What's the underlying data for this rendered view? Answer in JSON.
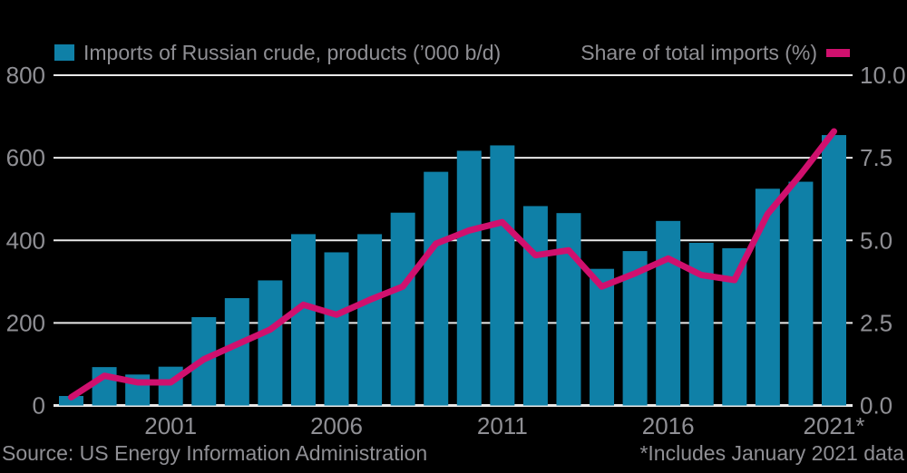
{
  "legend": {
    "bars_label": "Imports of Russian crude, products (’000 b/d)",
    "line_label": "Share of total imports (%)"
  },
  "footer": {
    "source": "Source: US Energy Information Administration",
    "note": "*Includes January 2021 data"
  },
  "colors": {
    "background": "#000000",
    "bar": "#0f80a7",
    "line": "#d0106e",
    "grid": "#e9e9e9",
    "text": "#8f8f94"
  },
  "chart_data": {
    "type": "bar",
    "title": "",
    "categories": [
      1998,
      1999,
      2000,
      2001,
      2002,
      2003,
      2004,
      2005,
      2006,
      2007,
      2008,
      2009,
      2010,
      2011,
      2012,
      2013,
      2014,
      2015,
      2016,
      2017,
      2018,
      2019,
      2020,
      2021
    ],
    "series": [
      {
        "name": "Imports of Russian crude, products (’000 b/d)",
        "type": "bar",
        "axis": "left",
        "values": [
          23,
          93,
          75,
          94,
          214,
          260,
          303,
          415,
          371,
          415,
          467,
          566,
          617,
          630,
          483,
          466,
          331,
          374,
          447,
          394,
          381,
          525,
          542,
          655
        ]
      },
      {
        "name": "Share of total imports (%)",
        "type": "line",
        "axis": "right",
        "values": [
          0.25,
          0.9,
          0.7,
          0.7,
          1.4,
          1.85,
          2.3,
          3.05,
          2.75,
          3.2,
          3.6,
          4.9,
          5.3,
          5.55,
          4.55,
          4.7,
          3.6,
          4.0,
          4.45,
          3.95,
          3.8,
          5.8,
          7.0,
          8.3
        ]
      }
    ],
    "left_axis": {
      "range": [
        0,
        800
      ],
      "ticks": [
        0,
        200,
        400,
        600,
        800
      ],
      "labels": [
        "0",
        "200",
        "400",
        "600",
        "800"
      ]
    },
    "right_axis": {
      "range": [
        0,
        10
      ],
      "ticks": [
        0,
        2.5,
        5,
        7.5,
        10
      ],
      "labels": [
        "0.0",
        "2.5",
        "5.0",
        "7.5",
        "10.0"
      ]
    },
    "x_ticks": [
      {
        "year": 2001,
        "label": "2001"
      },
      {
        "year": 2006,
        "label": "2006"
      },
      {
        "year": 2011,
        "label": "2011"
      },
      {
        "year": 2016,
        "label": "2016"
      },
      {
        "year": 2021,
        "label": "2021*"
      }
    ],
    "grid": true,
    "legend_position": "top"
  }
}
